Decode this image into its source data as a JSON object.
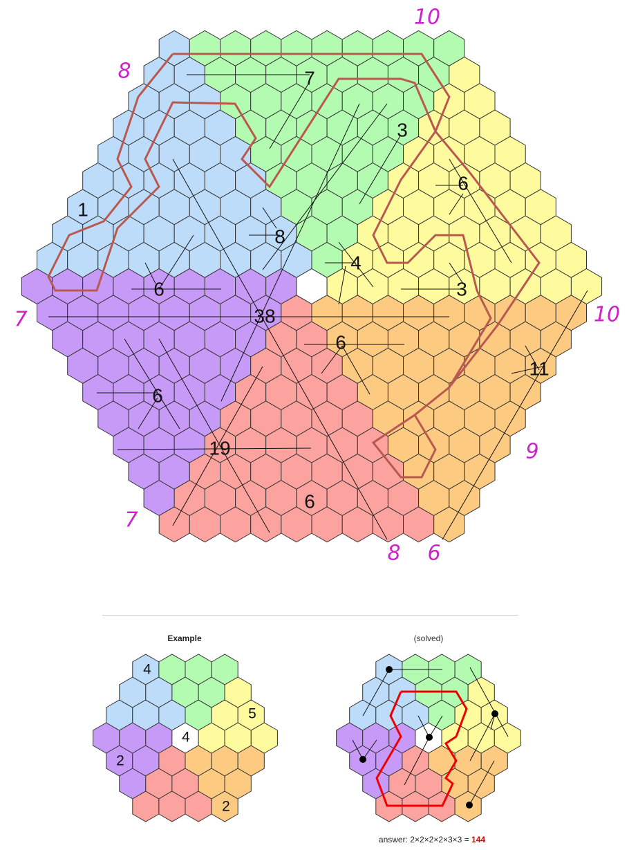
{
  "colors": {
    "blue": "#bcdcfa",
    "green": "#b3fbb1",
    "yellow": "#fdfb9d",
    "orange": "#fdca82",
    "red": "#fda39f",
    "purple": "#c89af8",
    "white": "#ffffff",
    "path": "#b8584f",
    "edge_numbers": "#cc22cc",
    "answer_value": "#e00000"
  },
  "main_clues": [
    "7",
    "3",
    "6",
    "1",
    "8",
    "4",
    "6",
    "3",
    "38",
    "6",
    "11",
    "6",
    "19",
    "6"
  ],
  "edge_numbers": [
    "10",
    "8",
    "7",
    "10",
    "9",
    "7",
    "8",
    "6"
  ],
  "example": {
    "title": "Example",
    "clues": [
      "4",
      "5",
      "4",
      "2",
      "2"
    ]
  },
  "solved": {
    "title": "(solved)"
  },
  "answer": {
    "prefix": "answer: 2×2×2×2×3×3 = ",
    "value": "144"
  }
}
